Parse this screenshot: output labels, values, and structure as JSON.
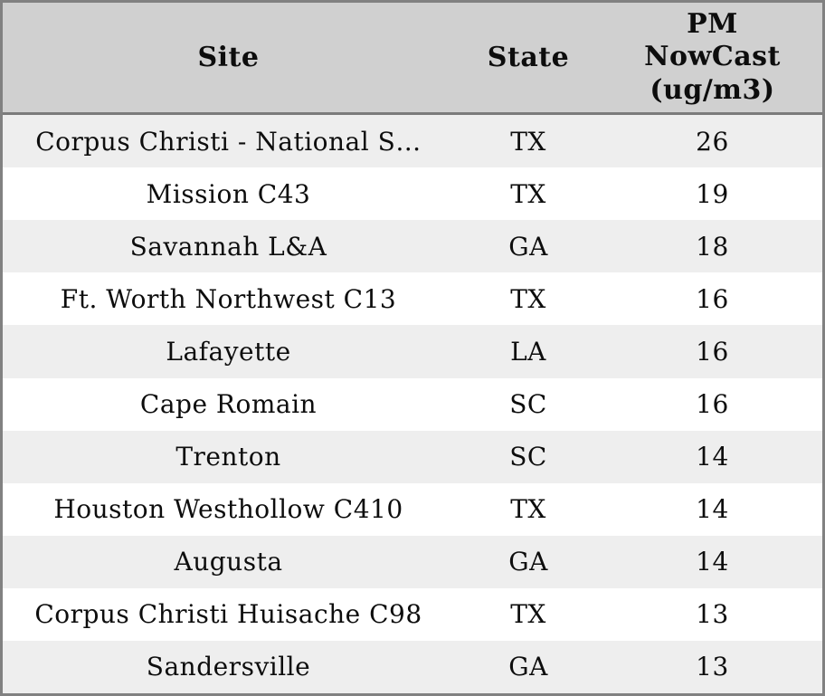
{
  "chart_data": {
    "type": "table",
    "title": "",
    "columns": [
      "Site",
      "State",
      "PM NowCast (ug/m3)"
    ],
    "rows": [
      [
        "Corpus Christi - National S…",
        "TX",
        26
      ],
      [
        "Mission C43",
        "TX",
        19
      ],
      [
        "Savannah L&A",
        "GA",
        18
      ],
      [
        "Ft. Worth Northwest C13",
        "TX",
        16
      ],
      [
        "Lafayette",
        "LA",
        16
      ],
      [
        "Cape Romain",
        "SC",
        16
      ],
      [
        "Trenton",
        "SC",
        14
      ],
      [
        "Houston Westhollow C410",
        "TX",
        14
      ],
      [
        "Augusta",
        "GA",
        14
      ],
      [
        "Corpus Christi Huisache C98",
        "TX",
        13
      ],
      [
        "Sandersville",
        "GA",
        13
      ]
    ],
    "layout": {
      "striped_rows": true,
      "stripe_order": "odd-rows-gray"
    }
  },
  "colors": {
    "header_bg": "#d0d0d0",
    "row_stripe": "#eeeeee",
    "row_plain": "#ffffff",
    "outer_border": "#818181",
    "header_divider": "#7b7b7b",
    "text": "#0d0d0d"
  }
}
